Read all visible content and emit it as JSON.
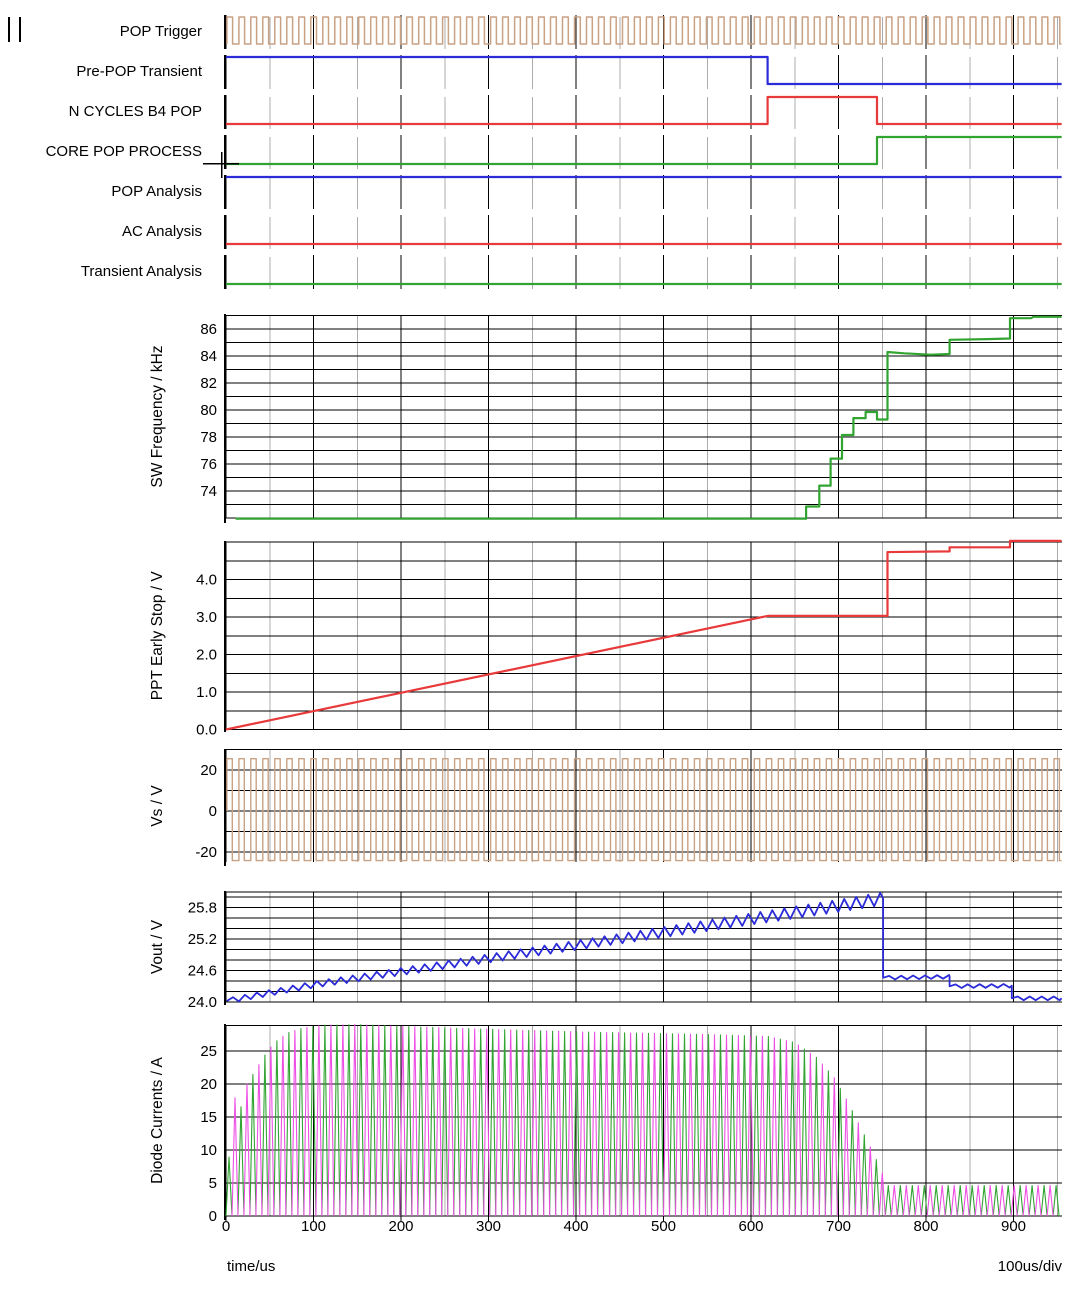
{
  "window": {
    "pause_icon_name": "pause-marker"
  },
  "x_axis": {
    "label": "time/us",
    "scale_label": "100us/div",
    "unit": "us",
    "major_ticks": [
      0,
      100,
      200,
      300,
      400,
      500,
      600,
      700,
      800,
      900
    ],
    "minor_step_us": 50,
    "t_end": 955
  },
  "colors": {
    "tan": "#C9A183",
    "blue": "#2B2BD9",
    "red": "#E83A3A",
    "green": "#31A431",
    "magenta": "#ED4FE5",
    "grid_major": "#000000",
    "grid_minor": "#ACACAC",
    "text": "#000000"
  },
  "chart_data": [
    {
      "type": "line",
      "subtype": "digital-timing",
      "x_unit": "us",
      "x_range": [
        0,
        955
      ],
      "rows": [
        {
          "label": "POP Trigger",
          "color": "tan",
          "kind": "clock",
          "period_us": 13.7,
          "duty": 0.48,
          "t_start": 1
        },
        {
          "label": "Pre-POP Transient",
          "color": "blue",
          "kind": "steps",
          "points": [
            [
              0,
              1
            ],
            [
              619,
              0
            ]
          ]
        },
        {
          "label": "N CYCLES B4 POP",
          "color": "red",
          "kind": "steps",
          "points": [
            [
              0,
              0
            ],
            [
              619,
              1
            ],
            [
              744,
              0
            ]
          ]
        },
        {
          "label": "CORE POP PROCESS",
          "color": "green",
          "kind": "steps",
          "points": [
            [
              0,
              0
            ],
            [
              744,
              1
            ]
          ]
        },
        {
          "label": "POP Analysis",
          "color": "blue",
          "kind": "steps",
          "points": [
            [
              0,
              1
            ]
          ]
        },
        {
          "label": "AC Analysis",
          "color": "red",
          "kind": "steps",
          "points": [
            [
              0,
              0
            ]
          ]
        },
        {
          "label": "Transient Analysis",
          "color": "green",
          "kind": "steps",
          "points": [
            [
              0,
              0
            ]
          ]
        }
      ]
    },
    {
      "type": "line",
      "ylabel": "SW Frequency / kHz",
      "y_ticks": [
        {
          "v": 74,
          "label": "74"
        },
        {
          "v": 76,
          "label": "76"
        },
        {
          "v": 78,
          "label": "78"
        },
        {
          "v": 80,
          "label": "80"
        },
        {
          "v": 82,
          "label": "82"
        },
        {
          "v": 84,
          "label": "84"
        },
        {
          "v": 86,
          "label": "86"
        }
      ],
      "grid_values": [
        72,
        73,
        74,
        75,
        76,
        77,
        78,
        79,
        80,
        81,
        82,
        83,
        84,
        85,
        86,
        87
      ],
      "ylim": [
        71.8,
        87.0
      ],
      "series": [
        {
          "name": "sw-frequency",
          "color": "green",
          "kind": "line",
          "points": [
            [
              11,
              71.95
            ],
            [
              663,
              71.95
            ],
            [
              663,
              72.85
            ],
            [
              678,
              72.85
            ],
            [
              678,
              74.4
            ],
            [
              691,
              74.4
            ],
            [
              691,
              76.4
            ],
            [
              704,
              76.4
            ],
            [
              704,
              78.15
            ],
            [
              717,
              78.15
            ],
            [
              717,
              79.4
            ],
            [
              731,
              79.4
            ],
            [
              731,
              79.85
            ],
            [
              744,
              79.85
            ],
            [
              744,
              79.3
            ],
            [
              756,
              79.3
            ],
            [
              756,
              84.3
            ],
            [
              775,
              84.2
            ],
            [
              805,
              84.1
            ],
            [
              827,
              84.15
            ],
            [
              827,
              85.2
            ],
            [
              870,
              85.25
            ],
            [
              896,
              85.3
            ],
            [
              896,
              86.8
            ],
            [
              920,
              86.8
            ],
            [
              923,
              86.9
            ],
            [
              955,
              86.9
            ]
          ]
        }
      ]
    },
    {
      "type": "line",
      "ylabel": "PPT Early Stop / V",
      "y_ticks": [
        {
          "v": 0,
          "label": "0.0"
        },
        {
          "v": 1,
          "label": "1.0"
        },
        {
          "v": 2,
          "label": "2.0"
        },
        {
          "v": 3,
          "label": "3.0"
        },
        {
          "v": 4,
          "label": "4.0"
        }
      ],
      "grid_values": [
        0,
        0.5,
        1,
        1.5,
        2,
        2.5,
        3,
        3.5,
        4,
        4.5,
        5
      ],
      "ylim": [
        0,
        5.05
      ],
      "series": [
        {
          "name": "ppt-early-stop",
          "color": "red",
          "kind": "line",
          "points": [
            [
              0,
              0
            ],
            [
              619,
              3.03
            ],
            [
              756,
              3.03
            ],
            [
              756,
              4.73
            ],
            [
              827,
              4.75
            ],
            [
              827,
              4.86
            ],
            [
              896,
              4.86
            ],
            [
              896,
              5.03
            ],
            [
              955,
              5.03
            ]
          ]
        }
      ]
    },
    {
      "type": "line",
      "ylabel": "Vs / V",
      "y_ticks": [
        {
          "v": 20,
          "label": "20"
        },
        {
          "v": 0,
          "label": "0"
        },
        {
          "v": -20,
          "label": "-20"
        }
      ],
      "grid_values": [
        -20,
        -10,
        0,
        10,
        20,
        30
      ],
      "ylim": [
        -26.8,
        30
      ],
      "series": [
        {
          "name": "vs",
          "color": "tan",
          "kind": "clock",
          "period_us": 13.7,
          "duty": 0.45,
          "high": 25.5,
          "low": -24.2,
          "t_start": 1
        }
      ]
    },
    {
      "type": "line",
      "ylabel": "Vout / V",
      "y_ticks": [
        {
          "v": 24.0,
          "label": "24.0"
        },
        {
          "v": 24.6,
          "label": "24.6"
        },
        {
          "v": 25.2,
          "label": "25.2"
        },
        {
          "v": 25.8,
          "label": "25.8"
        }
      ],
      "grid_values": [
        24,
        24.2,
        24.4,
        24.6,
        24.8,
        25,
        25.2,
        25.4,
        25.6,
        25.8,
        26
      ],
      "border_top_v": 26.1,
      "ylim": [
        24.0,
        26.1
      ],
      "series": [
        {
          "name": "vout",
          "color": "blue",
          "kind": "ripple",
          "period_us": 13.7,
          "segments": [
            {
              "base": [
                [
                  1,
                  24.02
                ],
                [
                  100,
                  24.33
                ],
                [
                  200,
                  24.58
                ],
                [
                  300,
                  24.83
                ],
                [
                  400,
                  25.08
                ],
                [
                  500,
                  25.33
                ],
                [
                  600,
                  25.58
                ],
                [
                  700,
                  25.83
                ],
                [
                  751,
                  25.97
                ]
              ],
              "amp": [
                0.05,
                0.12
              ]
            },
            {
              "base": [
                [
                  751,
                  24.46
                ],
                [
                  827,
                  24.48
                ]
              ],
              "amp": [
                0.035,
                0.035
              ]
            },
            {
              "base": [
                [
                  827,
                  24.3
                ],
                [
                  898,
                  24.31
                ]
              ],
              "amp": [
                0.035,
                0.035
              ]
            },
            {
              "base": [
                [
                  898,
                  24.07
                ],
                [
                  955,
                  24.07
                ]
              ],
              "amp": [
                0.035,
                0.035
              ]
            }
          ]
        }
      ]
    },
    {
      "type": "line",
      "ylabel": "Diode Currents / A",
      "y_ticks": [
        {
          "v": 0,
          "label": "0"
        },
        {
          "v": 5,
          "label": "5"
        },
        {
          "v": 10,
          "label": "10"
        },
        {
          "v": 15,
          "label": "15"
        },
        {
          "v": 20,
          "label": "20"
        },
        {
          "v": 25,
          "label": "25"
        }
      ],
      "grid_values": [
        0,
        5,
        10,
        15,
        20,
        25
      ],
      "border_top_v": 28.9,
      "ylim": [
        0,
        28.9
      ],
      "envelope": [
        [
          2,
          7
        ],
        [
          10,
          18
        ],
        [
          16,
          16
        ],
        [
          24,
          20
        ],
        [
          31,
          21.5
        ],
        [
          38,
          23
        ],
        [
          45,
          24.5
        ],
        [
          52,
          25.7
        ],
        [
          60,
          26.8
        ],
        [
          72,
          27.8
        ],
        [
          85,
          28.4
        ],
        [
          110,
          28.9
        ],
        [
          150,
          29
        ],
        [
          250,
          28.5
        ],
        [
          400,
          27.9
        ],
        [
          550,
          27.5
        ],
        [
          620,
          27.2
        ],
        [
          650,
          26.3
        ],
        [
          675,
          24
        ],
        [
          695,
          21
        ],
        [
          710,
          17.5
        ],
        [
          725,
          13.5
        ],
        [
          740,
          9.5
        ],
        [
          750,
          6.5
        ],
        [
          757,
          4.6
        ],
        [
          955,
          4.6
        ]
      ],
      "series": [
        {
          "name": "diode-current-1",
          "color": "green",
          "kind": "pulses",
          "period_us": 13.7,
          "offset_us": 3.4
        },
        {
          "name": "diode-current-2",
          "color": "magenta",
          "kind": "pulses",
          "period_us": 13.7,
          "offset_us": 10.25
        }
      ]
    }
  ]
}
